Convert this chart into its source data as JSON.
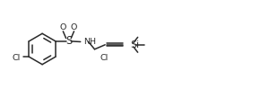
{
  "bg_color": "#ffffff",
  "line_color": "#2a2a2a",
  "line_width": 1.1,
  "font_size": 6.8,
  "fig_width": 2.91,
  "fig_height": 1.09,
  "dpi": 100,
  "xlim": [
    0,
    10.5
  ],
  "ylim": [
    0,
    3.6
  ]
}
